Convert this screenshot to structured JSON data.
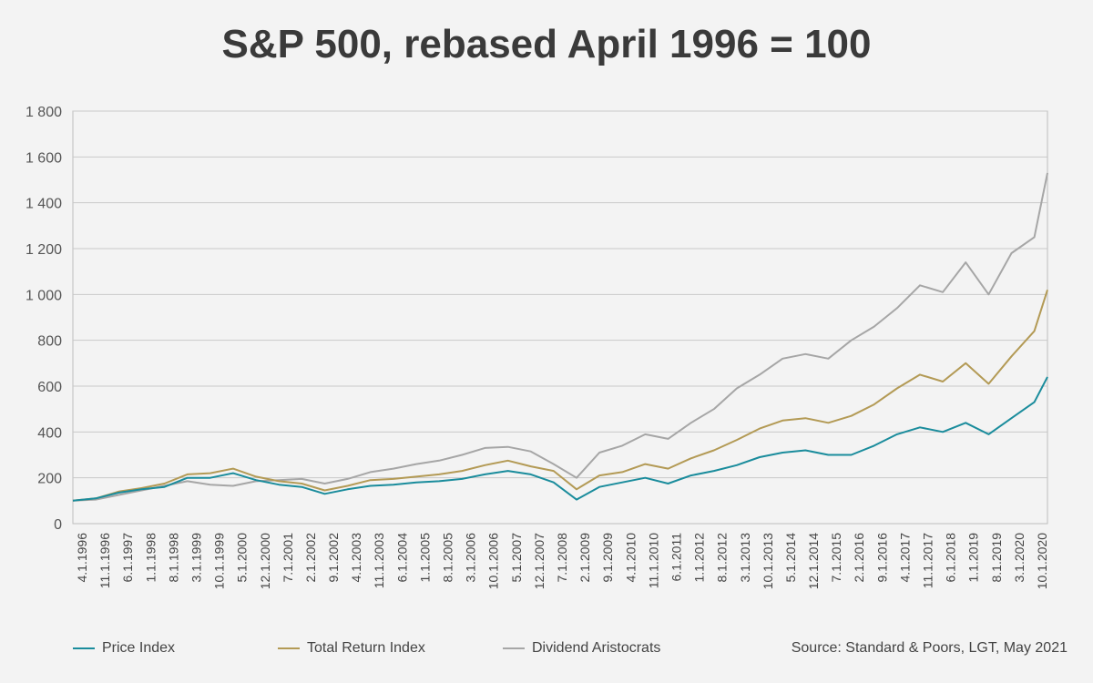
{
  "chart_data": {
    "type": "line",
    "title": "S&P 500, rebased April 1996 = 100",
    "xlabel": "",
    "ylabel": "",
    "ylim": [
      0,
      1800
    ],
    "yticks": [
      0,
      200,
      400,
      600,
      800,
      1000,
      1200,
      1400,
      1600,
      1800
    ],
    "ytick_labels": [
      "0",
      "200",
      "400",
      "600",
      "800",
      "1 000",
      "1 200",
      "1 400",
      "1 600",
      "1 800"
    ],
    "grid": true,
    "legend_position": "bottom",
    "x_tick_labels": [
      "4.1.1996",
      "11.1.1996",
      "6.1.1997",
      "1.1.1998",
      "8.1.1998",
      "3.1.1999",
      "10.1.1999",
      "5.1.2000",
      "12.1.2000",
      "7.1.2001",
      "2.1.2002",
      "9.1.2002",
      "4.1.2003",
      "11.1.2003",
      "6.1.2004",
      "1.1.2005",
      "8.1.2005",
      "3.1.2006",
      "10.1.2006",
      "5.1.2007",
      "12.1.2007",
      "7.1.2008",
      "2.1.2009",
      "9.1.2009",
      "4.1.2010",
      "11.1.2010",
      "6.1.2011",
      "1.1.2012",
      "8.1.2012",
      "3.1.2013",
      "10.1.2013",
      "5.1.2014",
      "12.1.2014",
      "7.1.2015",
      "2.1.2016",
      "9.1.2016",
      "4.1.2017",
      "11.1.2017",
      "6.1.2018",
      "1.1.2019",
      "8.1.2019",
      "3.1.2020",
      "10.1.2020"
    ],
    "x": [
      "1996-04",
      "1996-11",
      "1997-06",
      "1998-01",
      "1998-08",
      "1999-03",
      "1999-10",
      "2000-05",
      "2000-12",
      "2001-07",
      "2002-02",
      "2002-09",
      "2003-04",
      "2003-11",
      "2004-06",
      "2005-01",
      "2005-08",
      "2006-03",
      "2006-10",
      "2007-05",
      "2007-12",
      "2008-07",
      "2009-02",
      "2009-09",
      "2010-04",
      "2010-11",
      "2011-06",
      "2012-01",
      "2012-08",
      "2013-03",
      "2013-10",
      "2014-05",
      "2014-12",
      "2015-07",
      "2016-02",
      "2016-09",
      "2017-04",
      "2017-11",
      "2018-06",
      "2019-01",
      "2019-08",
      "2020-03",
      "2020-10",
      "2021-02"
    ],
    "series": [
      {
        "name": "Price Index",
        "color": "#1a8c9c",
        "values": [
          100,
          110,
          135,
          150,
          160,
          200,
          200,
          220,
          190,
          170,
          160,
          130,
          150,
          165,
          170,
          180,
          185,
          195,
          215,
          230,
          215,
          180,
          105,
          160,
          180,
          200,
          175,
          210,
          230,
          255,
          290,
          310,
          320,
          300,
          300,
          340,
          390,
          420,
          400,
          440,
          390,
          460,
          530,
          640
        ]
      },
      {
        "name": "Total Return Index",
        "color": "#b39a55",
        "values": [
          100,
          110,
          140,
          155,
          175,
          215,
          220,
          240,
          205,
          185,
          175,
          145,
          165,
          190,
          195,
          205,
          215,
          230,
          255,
          275,
          250,
          230,
          150,
          210,
          225,
          260,
          240,
          285,
          320,
          365,
          415,
          450,
          460,
          440,
          470,
          520,
          590,
          650,
          620,
          700,
          610,
          730,
          840,
          1020
        ]
      },
      {
        "name": "Dividend Aristocrats",
        "color": "#a6a6a6",
        "values": [
          100,
          105,
          125,
          145,
          165,
          185,
          170,
          165,
          185,
          190,
          195,
          175,
          195,
          225,
          240,
          260,
          275,
          300,
          330,
          335,
          315,
          260,
          200,
          310,
          340,
          390,
          370,
          440,
          500,
          590,
          650,
          720,
          740,
          720,
          800,
          860,
          940,
          1040,
          1010,
          1140,
          1000,
          1180,
          1250,
          1530
        ]
      }
    ]
  },
  "legend": {
    "items": [
      {
        "label": "Price Index",
        "color": "#1a8c9c"
      },
      {
        "label": "Total Return Index",
        "color": "#b39a55"
      },
      {
        "label": "Dividend Aristocrats",
        "color": "#a6a6a6"
      }
    ]
  },
  "source": "Source: Standard & Poors, LGT, May 2021"
}
